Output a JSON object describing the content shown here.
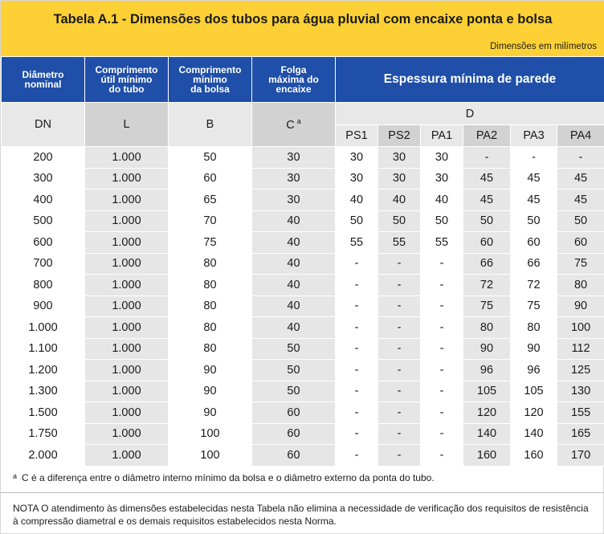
{
  "title": "Tabela A.1 - Dimensões dos tubos para água pluvial com encaixe ponta e bolsa",
  "units_note": "Dimensões em milímetros",
  "headers": {
    "dn": [
      "Diâmetro",
      "nominal"
    ],
    "l": [
      "Comprimento",
      "útil mínimo",
      "do tubo"
    ],
    "b": [
      "Comprimento",
      "mínimo",
      "da bolsa"
    ],
    "c": [
      "Folga",
      "máxima do",
      "encaixe"
    ],
    "espessura": "Espessura mínima de parede",
    "symbols": {
      "dn": "DN",
      "l": "L",
      "b": "B",
      "c": "C",
      "c_sup": "a",
      "d": "D"
    },
    "classes": [
      "PS1",
      "PS2",
      "PA1",
      "PA2",
      "PA3",
      "PA4"
    ]
  },
  "rows": [
    [
      "200",
      "1.000",
      "50",
      "30",
      "30",
      "30",
      "30",
      "-",
      "-",
      "-"
    ],
    [
      "300",
      "1.000",
      "60",
      "30",
      "30",
      "30",
      "30",
      "45",
      "45",
      "45"
    ],
    [
      "400",
      "1.000",
      "65",
      "30",
      "40",
      "40",
      "40",
      "45",
      "45",
      "45"
    ],
    [
      "500",
      "1.000",
      "70",
      "40",
      "50",
      "50",
      "50",
      "50",
      "50",
      "50"
    ],
    [
      "600",
      "1.000",
      "75",
      "40",
      "55",
      "55",
      "55",
      "60",
      "60",
      "60"
    ],
    [
      "700",
      "1.000",
      "80",
      "40",
      "-",
      "-",
      "-",
      "66",
      "66",
      "75"
    ],
    [
      "800",
      "1.000",
      "80",
      "40",
      "-",
      "-",
      "-",
      "72",
      "72",
      "80"
    ],
    [
      "900",
      "1.000",
      "80",
      "40",
      "-",
      "-",
      "-",
      "75",
      "75",
      "90"
    ],
    [
      "1.000",
      "1.000",
      "80",
      "40",
      "-",
      "-",
      "-",
      "80",
      "80",
      "100"
    ],
    [
      "1.100",
      "1.000",
      "80",
      "50",
      "-",
      "-",
      "-",
      "90",
      "90",
      "112"
    ],
    [
      "1.200",
      "1.000",
      "90",
      "50",
      "-",
      "-",
      "-",
      "96",
      "96",
      "125"
    ],
    [
      "1.300",
      "1.000",
      "90",
      "50",
      "-",
      "-",
      "-",
      "105",
      "105",
      "130"
    ],
    [
      "1.500",
      "1.000",
      "90",
      "60",
      "-",
      "-",
      "-",
      "120",
      "120",
      "155"
    ],
    [
      "1.750",
      "1.000",
      "100",
      "60",
      "-",
      "-",
      "-",
      "140",
      "140",
      "165"
    ],
    [
      "2.000",
      "1.000",
      "100",
      "60",
      "-",
      "-",
      "-",
      "160",
      "160",
      "170"
    ]
  ],
  "footnote": {
    "mark": "a",
    "text": "C é a diferença entre o diâmetro interno mínimo da bolsa e o diâmetro externo da ponta do tubo."
  },
  "note": "NOTA   O atendimento às dimensões estabelecidas nesta Tabela não elimina a necessidade de verificação dos requisitos de resistência à compressão diametral e os demais requisitos estabelecidos nesta Norma.",
  "colors": {
    "title_bg": "#fdd135",
    "header_bg": "#1f4fa8",
    "stripe_gray": "#e6e6e6"
  }
}
